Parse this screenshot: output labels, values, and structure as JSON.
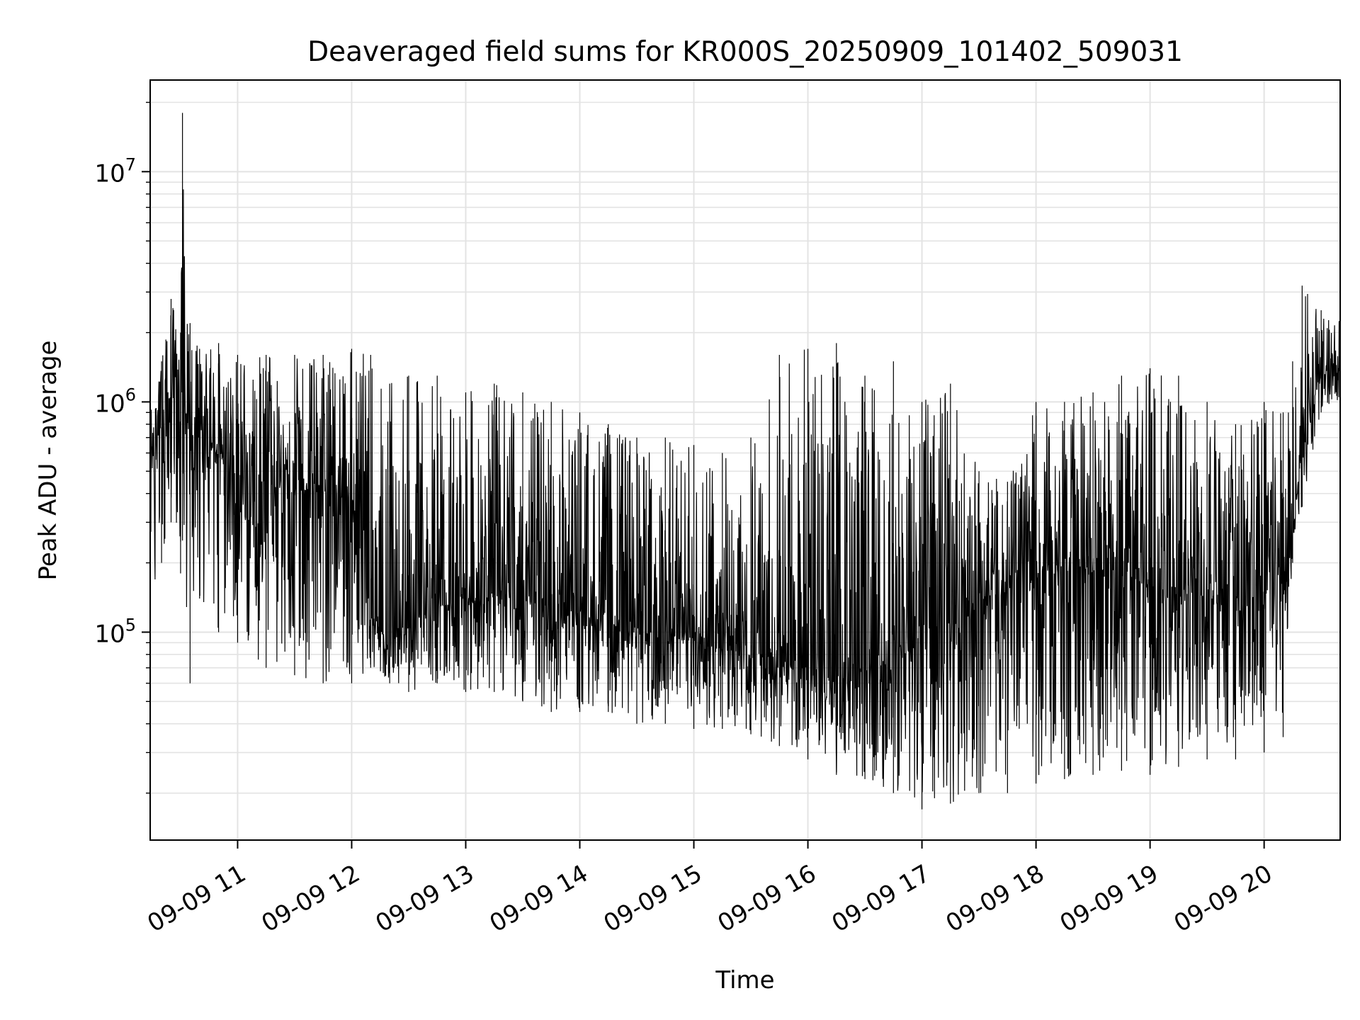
{
  "chart_data": {
    "type": "line",
    "title": "Deaveraged field sums for KR000S_20250909_101402_509031",
    "xlabel": "Time",
    "ylabel": "Peak ADU - average",
    "yscale": "log",
    "grid": true,
    "line_color": "#000000",
    "xlim": [
      "2025-09-09 10:14",
      "2025-09-09 20:40"
    ],
    "ylim": [
      12500,
      25000000
    ],
    "x_ticks": [
      {
        "value": "2025-09-09 11:00",
        "label": "09-09 11"
      },
      {
        "value": "2025-09-09 12:00",
        "label": "09-09 12"
      },
      {
        "value": "2025-09-09 13:00",
        "label": "09-09 13"
      },
      {
        "value": "2025-09-09 14:00",
        "label": "09-09 14"
      },
      {
        "value": "2025-09-09 15:00",
        "label": "09-09 15"
      },
      {
        "value": "2025-09-09 16:00",
        "label": "09-09 16"
      },
      {
        "value": "2025-09-09 17:00",
        "label": "09-09 17"
      },
      {
        "value": "2025-09-09 18:00",
        "label": "09-09 18"
      },
      {
        "value": "2025-09-09 19:00",
        "label": "09-09 19"
      },
      {
        "value": "2025-09-09 20:00",
        "label": "09-09 20"
      }
    ],
    "y_ticks": [
      {
        "value": 100000,
        "base": "10",
        "exp": "5"
      },
      {
        "value": 1000000,
        "base": "10",
        "exp": "6"
      },
      {
        "value": 10000000,
        "base": "10",
        "exp": "7"
      }
    ],
    "series": [
      {
        "x": [
          "2025-09-09 10:14",
          "2025-09-09 10:20",
          "2025-09-09 10:25",
          "2025-09-09 10:30",
          "2025-09-09 10:31",
          "2025-09-09 10:35",
          "2025-09-09 10:40",
          "2025-09-09 10:50",
          "2025-09-09 11:00",
          "2025-09-09 11:15",
          "2025-09-09 11:30",
          "2025-09-09 11:45",
          "2025-09-09 12:00",
          "2025-09-09 12:10",
          "2025-09-09 12:20",
          "2025-09-09 12:30",
          "2025-09-09 12:45",
          "2025-09-09 13:00",
          "2025-09-09 13:15",
          "2025-09-09 13:30",
          "2025-09-09 13:45",
          "2025-09-09 14:00",
          "2025-09-09 14:15",
          "2025-09-09 14:30",
          "2025-09-09 14:45",
          "2025-09-09 15:00",
          "2025-09-09 15:15",
          "2025-09-09 15:30",
          "2025-09-09 15:45",
          "2025-09-09 16:00",
          "2025-09-09 16:15",
          "2025-09-09 16:30",
          "2025-09-09 16:45",
          "2025-09-09 17:00",
          "2025-09-09 17:15",
          "2025-09-09 17:30",
          "2025-09-09 17:45",
          "2025-09-09 18:00",
          "2025-09-09 18:15",
          "2025-09-09 18:30",
          "2025-09-09 18:45",
          "2025-09-09 19:00",
          "2025-09-09 19:15",
          "2025-09-09 19:30",
          "2025-09-09 19:45",
          "2025-09-09 20:00",
          "2025-09-09 20:10",
          "2025-09-09 20:15",
          "2025-09-09 20:20",
          "2025-09-09 20:30",
          "2025-09-09 20:40"
        ],
        "lo": [
          130000,
          200000,
          300000,
          180000,
          250000,
          60000,
          140000,
          100000,
          90000,
          70000,
          65000,
          60000,
          60000,
          70000,
          60000,
          55000,
          60000,
          55000,
          55000,
          50000,
          45000,
          45000,
          45000,
          40000,
          40000,
          38000,
          38000,
          36000,
          32000,
          28000,
          24000,
          23000,
          20000,
          17000,
          18000,
          20000,
          20000,
          22000,
          23000,
          24000,
          25000,
          24000,
          26000,
          28000,
          28000,
          30000,
          35000,
          200000,
          350000,
          900000,
          1000000
        ],
        "hi": [
          900000,
          1500000,
          2800000,
          2000000,
          18000000,
          2200000,
          1700000,
          1800000,
          1600000,
          1600000,
          1600000,
          1600000,
          1700000,
          1600000,
          1200000,
          1300000,
          1300000,
          1100000,
          1200000,
          1100000,
          1000000,
          900000,
          800000,
          700000,
          700000,
          650000,
          600000,
          700000,
          1600000,
          1700000,
          1800000,
          1300000,
          1500000,
          1000000,
          1200000,
          500000,
          450000,
          1000000,
          1000000,
          1100000,
          1300000,
          1400000,
          1300000,
          1000000,
          800000,
          1000000,
          900000,
          1500000,
          3200000,
          2500000,
          2400000
        ],
        "mid": [
          500000,
          800000,
          1000000,
          900000,
          1000000,
          700000,
          700000,
          600000,
          500000,
          450000,
          420000,
          400000,
          380000,
          120000,
          90000,
          110000,
          130000,
          140000,
          145000,
          140000,
          130000,
          120000,
          110000,
          100000,
          95000,
          90000,
          85000,
          80000,
          75000,
          70000,
          65000,
          70000,
          75000,
          90000,
          110000,
          140000,
          150000,
          170000,
          185000,
          190000,
          180000,
          160000,
          150000,
          140000,
          135000,
          130000,
          140000,
          250000,
          700000,
          1300000,
          1400000
        ]
      }
    ]
  }
}
